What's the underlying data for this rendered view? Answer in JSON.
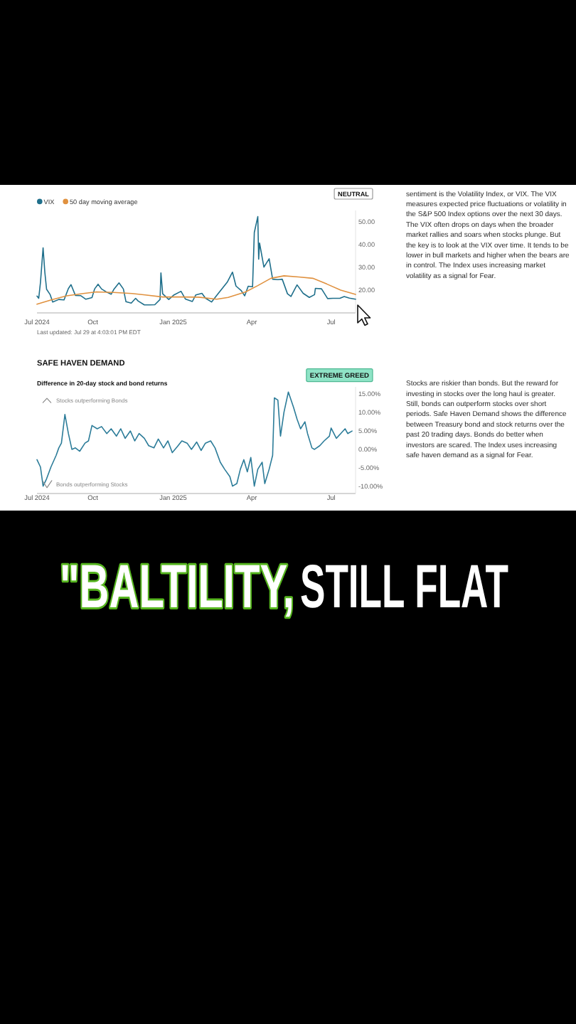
{
  "chart_data": [
    {
      "type": "line",
      "legend": "top left",
      "xlim": [
        "2024-07-29",
        "2025-07-29"
      ],
      "xticks": [
        {
          "value": "2024-07-29",
          "label": "Jul 2024"
        },
        {
          "value": "2024-10-01",
          "label": "Oct"
        },
        {
          "value": "2025-01-01",
          "label": "Jan 2025"
        },
        {
          "value": "2025-04-01",
          "label": "Apr"
        },
        {
          "value": "2025-07-01",
          "label": "Jul"
        }
      ],
      "ylim": [
        10,
        55
      ],
      "yticks": [
        {
          "value": 20,
          "label": "20.00"
        },
        {
          "value": 30,
          "label": "30.00"
        },
        {
          "value": 40,
          "label": "40.00"
        },
        {
          "value": 50,
          "label": "50.00"
        }
      ],
      "series": [
        {
          "name": "VIX",
          "color": "#1f6f8b",
          "x": [
            "2024-07-29",
            "2024-07-31",
            "2024-08-02",
            "2024-08-05",
            "2024-08-07",
            "2024-08-09",
            "2024-08-13",
            "2024-08-16",
            "2024-08-23",
            "2024-08-29",
            "2024-09-03",
            "2024-09-06",
            "2024-09-11",
            "2024-09-17",
            "2024-09-23",
            "2024-09-30",
            "2024-10-03",
            "2024-10-07",
            "2024-10-11",
            "2024-10-17",
            "2024-10-22",
            "2024-10-25",
            "2024-10-31",
            "2024-11-05",
            "2024-11-08",
            "2024-11-14",
            "2024-11-19",
            "2024-11-22",
            "2024-11-29",
            "2024-12-05",
            "2024-12-11",
            "2024-12-17",
            "2024-12-18",
            "2024-12-20",
            "2024-12-27",
            "2025-01-02",
            "2025-01-10",
            "2025-01-15",
            "2025-01-23",
            "2025-01-27",
            "2025-02-03",
            "2025-02-07",
            "2025-02-14",
            "2025-02-21",
            "2025-02-27",
            "2025-03-04",
            "2025-03-10",
            "2025-03-14",
            "2025-03-20",
            "2025-03-24",
            "2025-03-28",
            "2025-04-02",
            "2025-04-04",
            "2025-04-08",
            "2025-04-09",
            "2025-04-10",
            "2025-04-15",
            "2025-04-21",
            "2025-04-25",
            "2025-05-01",
            "2025-05-06",
            "2025-05-12",
            "2025-05-16",
            "2025-05-21",
            "2025-05-23",
            "2025-05-30",
            "2025-06-06",
            "2025-06-12",
            "2025-06-13",
            "2025-06-20",
            "2025-06-27",
            "2025-07-03",
            "2025-07-11",
            "2025-07-16",
            "2025-07-22",
            "2025-07-29"
          ],
          "values": [
            17.4,
            16.4,
            23.4,
            38.6,
            27.9,
            20.4,
            18.1,
            14.8,
            15.9,
            15.7,
            20.7,
            22.4,
            17.7,
            17.6,
            16.0,
            16.7,
            20.5,
            22.6,
            20.5,
            19.1,
            18.2,
            20.3,
            23.2,
            20.5,
            14.9,
            14.3,
            16.4,
            15.2,
            13.5,
            13.5,
            13.6,
            15.9,
            27.6,
            18.4,
            15.9,
            17.9,
            19.5,
            16.1,
            15.0,
            17.9,
            18.6,
            16.5,
            14.8,
            18.2,
            21.1,
            23.5,
            27.9,
            21.8,
            19.8,
            17.5,
            21.7,
            21.5,
            45.3,
            52.3,
            33.6,
            40.7,
            30.1,
            33.8,
            24.8,
            24.6,
            24.8,
            18.4,
            17.2,
            20.9,
            22.3,
            18.6,
            16.8,
            18.0,
            20.8,
            20.6,
            16.3,
            16.4,
            16.4,
            17.2,
            16.5,
            16.0
          ]
        },
        {
          "name": "50 day moving average",
          "color": "#e0913f",
          "x": [
            "2024-07-29",
            "2024-08-15",
            "2024-09-01",
            "2024-09-20",
            "2024-10-05",
            "2024-10-25",
            "2024-11-15",
            "2024-11-30",
            "2024-12-20",
            "2025-01-10",
            "2025-01-30",
            "2025-02-20",
            "2025-03-05",
            "2025-03-25",
            "2025-04-08",
            "2025-04-23",
            "2025-05-08",
            "2025-05-25",
            "2025-06-10",
            "2025-06-26",
            "2025-07-12",
            "2025-07-29"
          ],
          "values": [
            13.8,
            15.8,
            17.5,
            18.5,
            19.2,
            19.0,
            18.5,
            17.9,
            17.0,
            17.0,
            16.9,
            16.0,
            16.8,
            19.2,
            22.0,
            25.2,
            26.3,
            25.8,
            25.2,
            22.7,
            20.0,
            18.1
          ]
        }
      ],
      "annotations": [
        "NEUTRAL",
        "Last updated: Jul 29 at 4:03:01 PM EDT",
        "sentiment is the Volatility Index, or VIX. The VIX measures expected price fluctuations or volatility in the S&P 500 Index options over the next 30 days. The VIX often drops on days when the broader market rallies and soars when stocks plunge. But the key is to look at the VIX over time. It tends to be lower in bull markets and higher when the bears are in control. The Index uses increasing market volatility as a signal for Fear."
      ]
    },
    {
      "type": "line",
      "title": "SAFE HAVEN DEMAND",
      "subtitle": "Difference in 20-day stock and bond returns",
      "xlim": [
        "2024-07-29",
        "2025-07-29"
      ],
      "xticks": [
        {
          "value": "2024-07-29",
          "label": "Jul 2024"
        },
        {
          "value": "2024-10-01",
          "label": "Oct"
        },
        {
          "value": "2025-01-01",
          "label": "Jan 2025"
        },
        {
          "value": "2025-04-01",
          "label": "Apr"
        },
        {
          "value": "2025-07-01",
          "label": "Jul"
        }
      ],
      "ylim": [
        -12,
        17
      ],
      "yticks": [
        {
          "value": -10,
          "label": "-10.00%"
        },
        {
          "value": -5,
          "label": "-5.00%"
        },
        {
          "value": 0,
          "label": "0.00%"
        },
        {
          "value": 5,
          "label": "5.00%"
        },
        {
          "value": 10,
          "label": "10.00%"
        },
        {
          "value": 15,
          "label": "15.00%"
        }
      ],
      "series": [
        {
          "color": "#2c7c99",
          "x": [
            "2024-07-29",
            "2024-08-02",
            "2024-08-05",
            "2024-08-09",
            "2024-08-14",
            "2024-08-20",
            "2024-08-23",
            "2024-08-26",
            "2024-08-30",
            "2024-09-03",
            "2024-09-07",
            "2024-09-11",
            "2024-09-16",
            "2024-09-22",
            "2024-09-26",
            "2024-09-30",
            "2024-10-06",
            "2024-10-11",
            "2024-10-17",
            "2024-10-22",
            "2024-10-28",
            "2024-11-02",
            "2024-11-07",
            "2024-11-13",
            "2024-11-18",
            "2024-11-23",
            "2024-11-29",
            "2024-12-04",
            "2024-12-10",
            "2024-12-15",
            "2024-12-21",
            "2024-12-26",
            "2024-12-31",
            "2025-01-06",
            "2025-01-11",
            "2025-01-17",
            "2025-01-22",
            "2025-01-28",
            "2025-02-02",
            "2025-02-07",
            "2025-02-13",
            "2025-02-18",
            "2025-02-24",
            "2025-03-01",
            "2025-03-07",
            "2025-03-10",
            "2025-03-15",
            "2025-03-19",
            "2025-03-23",
            "2025-03-27",
            "2025-03-31",
            "2025-04-04",
            "2025-04-08",
            "2025-04-13",
            "2025-04-16",
            "2025-04-21",
            "2025-04-25",
            "2025-04-27",
            "2025-05-01",
            "2025-05-04",
            "2025-05-08",
            "2025-05-13",
            "2025-05-19",
            "2025-05-23",
            "2025-05-27",
            "2025-06-01",
            "2025-06-04",
            "2025-06-09",
            "2025-06-12",
            "2025-06-18",
            "2025-06-23",
            "2025-06-29",
            "2025-07-01",
            "2025-07-07",
            "2025-07-12",
            "2025-07-17",
            "2025-07-20",
            "2025-07-25"
          ],
          "values": [
            -2.8,
            -4.8,
            -10.0,
            -8.0,
            -4.8,
            -1.6,
            0.4,
            1.7,
            9.5,
            4.3,
            0.0,
            0.4,
            -0.5,
            1.7,
            2.3,
            6.5,
            5.6,
            6.2,
            4.3,
            5.6,
            3.6,
            5.6,
            3.0,
            5.0,
            2.3,
            4.3,
            3.0,
            1.0,
            0.4,
            2.8,
            0.4,
            2.3,
            -0.9,
            0.8,
            2.3,
            1.7,
            0.0,
            2.0,
            -0.3,
            1.7,
            2.3,
            0.4,
            -3.5,
            -5.4,
            -7.4,
            -10.0,
            -9.3,
            -5.4,
            -2.8,
            -6.1,
            -2.2,
            -10.0,
            -5.4,
            -3.5,
            -9.3,
            -5.4,
            -1.6,
            14.0,
            13.4,
            3.6,
            10.1,
            15.6,
            11.4,
            8.2,
            5.6,
            7.5,
            4.3,
            0.4,
            0.0,
            1.0,
            2.3,
            3.6,
            5.8,
            3.0,
            4.3,
            5.6,
            4.3,
            5.0
          ]
        }
      ],
      "annotations": [
        "EXTREME GREED",
        "Stocks outperforming Bonds",
        "Bonds outperforming Stocks",
        "Stocks are riskier than bonds. But the reward for investing in stocks over the long haul is greater. Still, bonds can outperform stocks over short periods. Safe Haven Demand shows the difference between Treasury bond and stock returns over the past 20 trading days. Bonds do better when investors are scared. The Index uses increasing safe haven demand as a signal for Fear."
      ]
    },
    {
      "type": "other",
      "annotations": [
        "\"BALTILITY,",
        "STILL FLAT"
      ]
    }
  ]
}
